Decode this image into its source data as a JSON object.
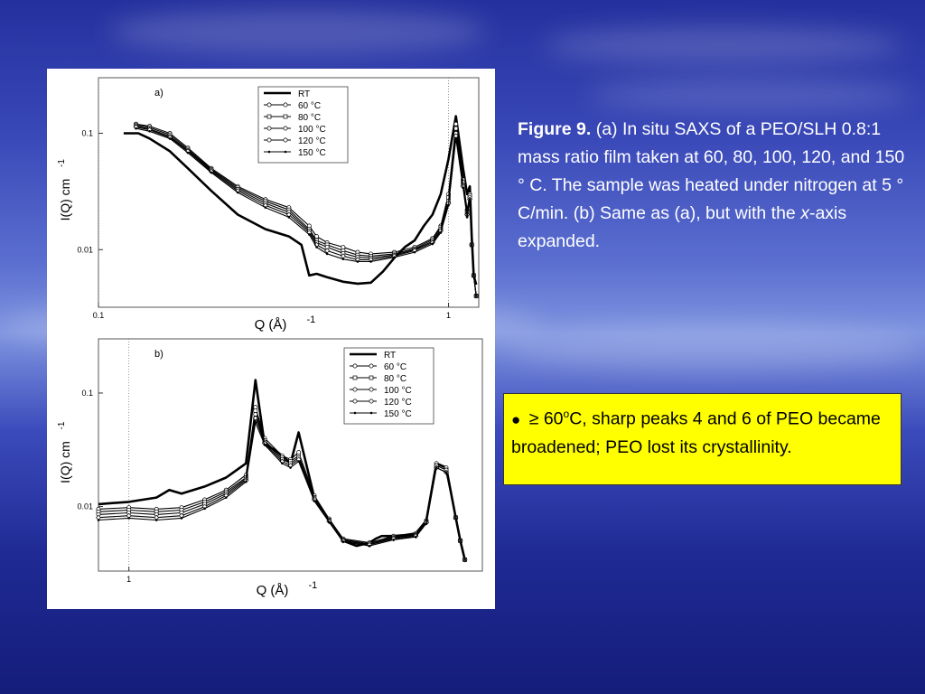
{
  "slide": {
    "caption": {
      "figure_label": "Figure 9.",
      "text_part1": " (a) In situ SAXS of a PEO/SLH 0.8:1 mass ratio film taken at 60, 80, 100, 120, and 150 ° C. The sample was heated under nitrogen at 5 ° C/min. (b) Same as (a), but with the ",
      "italic_x": "x",
      "text_part2": "-axis expanded."
    },
    "note": {
      "bullet": "●",
      "prefix": "≥ 60",
      "sup": "o",
      "text": "C, sharp peaks 4 and 6 of PEO became broadened; PEO lost its crystallinity."
    }
  },
  "chart_data": [
    {
      "type": "line",
      "panel_label": "a)",
      "xlabel": "Q (Å)",
      "xlabel_exp": "-1",
      "ylabel": "I(Q) cm",
      "ylabel_exp": "-1",
      "x_scale": "log",
      "y_scale": "log",
      "xlim": [
        0.1,
        1.22
      ],
      "ylim": [
        0.0032,
        0.3
      ],
      "x_ticks": [
        {
          "value": 0.1,
          "label": "0.1"
        },
        {
          "value": 1,
          "label": "1"
        }
      ],
      "y_ticks": [
        {
          "value": 0.1,
          "label": "0.1"
        },
        {
          "value": 0.01,
          "label": "0.01"
        }
      ],
      "vlines": [
        0.1,
        1
      ],
      "legend": [
        "RT",
        "60 °C",
        "80 °C",
        "100 °C",
        "120 °C",
        "150 °C"
      ],
      "legend_position": "top-right",
      "series": [
        {
          "name": "RT",
          "x": [
            0.118,
            0.13,
            0.14,
            0.16,
            0.18,
            0.21,
            0.25,
            0.3,
            0.35,
            0.38,
            0.4,
            0.42,
            0.45,
            0.5,
            0.55,
            0.6,
            0.65,
            0.7,
            0.75,
            0.8,
            0.85,
            0.9,
            0.95,
            1.0,
            1.05,
            1.1,
            1.13,
            1.15,
            1.165,
            1.18,
            1.2
          ],
          "y": [
            0.1,
            0.1,
            0.09,
            0.07,
            0.05,
            0.032,
            0.02,
            0.015,
            0.013,
            0.011,
            0.006,
            0.0062,
            0.0058,
            0.0053,
            0.0051,
            0.0052,
            0.0065,
            0.0085,
            0.0105,
            0.012,
            0.016,
            0.02,
            0.03,
            0.06,
            0.14,
            0.05,
            0.03,
            0.035,
            0.013,
            0.006,
            0.005
          ]
        },
        {
          "name": "60 °C",
          "x": [
            0.128,
            0.14,
            0.16,
            0.18,
            0.21,
            0.25,
            0.3,
            0.35,
            0.4,
            0.42,
            0.45,
            0.5,
            0.55,
            0.6,
            0.7,
            0.8,
            0.9,
            0.95,
            1.0,
            1.05,
            1.1,
            1.13,
            1.15,
            1.165,
            1.18,
            1.2
          ],
          "y": [
            0.12,
            0.115,
            0.1,
            0.075,
            0.05,
            0.035,
            0.027,
            0.023,
            0.016,
            0.013,
            0.0115,
            0.0105,
            0.0095,
            0.0092,
            0.0095,
            0.0105,
            0.0125,
            0.016,
            0.03,
            0.12,
            0.04,
            0.022,
            0.03,
            0.011,
            0.006,
            0.004
          ]
        },
        {
          "name": "80 °C",
          "x": [
            0.128,
            0.14,
            0.16,
            0.18,
            0.21,
            0.25,
            0.3,
            0.35,
            0.4,
            0.42,
            0.45,
            0.5,
            0.55,
            0.6,
            0.7,
            0.8,
            0.9,
            0.95,
            1.0,
            1.05,
            1.1,
            1.13,
            1.15,
            1.165,
            1.18,
            1.2
          ],
          "y": [
            0.118,
            0.112,
            0.097,
            0.073,
            0.049,
            0.034,
            0.026,
            0.022,
            0.015,
            0.012,
            0.011,
            0.0098,
            0.009,
            0.0088,
            0.0092,
            0.0102,
            0.0122,
            0.0155,
            0.028,
            0.11,
            0.038,
            0.021,
            0.029,
            0.011,
            0.006,
            0.004
          ]
        },
        {
          "name": "100 °C",
          "x": [
            0.128,
            0.14,
            0.16,
            0.18,
            0.21,
            0.25,
            0.3,
            0.35,
            0.4,
            0.42,
            0.45,
            0.5,
            0.55,
            0.6,
            0.7,
            0.8,
            0.9,
            0.95,
            1.0,
            1.05,
            1.1,
            1.13,
            1.15,
            1.165,
            1.18,
            1.2
          ],
          "y": [
            0.115,
            0.109,
            0.094,
            0.071,
            0.048,
            0.033,
            0.025,
            0.021,
            0.0145,
            0.0115,
            0.0105,
            0.0093,
            0.0086,
            0.0085,
            0.009,
            0.01,
            0.0118,
            0.015,
            0.026,
            0.1,
            0.036,
            0.02,
            0.028,
            0.011,
            0.006,
            0.004
          ]
        },
        {
          "name": "120 °C",
          "x": [
            0.128,
            0.14,
            0.16,
            0.18,
            0.21,
            0.25,
            0.3,
            0.35,
            0.4,
            0.42,
            0.45,
            0.5,
            0.55,
            0.6,
            0.7,
            0.8,
            0.9,
            0.95,
            1.0,
            1.05,
            1.1,
            1.13,
            1.15,
            1.165,
            1.18,
            1.2
          ],
          "y": [
            0.113,
            0.107,
            0.092,
            0.07,
            0.047,
            0.032,
            0.024,
            0.02,
            0.014,
            0.011,
            0.0098,
            0.0088,
            0.0082,
            0.0082,
            0.0088,
            0.0098,
            0.0115,
            0.0145,
            0.025,
            0.095,
            0.035,
            0.02,
            0.027,
            0.011,
            0.006,
            0.004
          ]
        },
        {
          "name": "150 °C",
          "x": [
            0.128,
            0.14,
            0.16,
            0.18,
            0.21,
            0.25,
            0.3,
            0.35,
            0.4,
            0.42,
            0.45,
            0.5,
            0.55,
            0.6,
            0.7,
            0.8,
            0.9,
            0.95,
            1.0,
            1.05,
            1.1,
            1.13,
            1.15,
            1.165,
            1.18,
            1.2
          ],
          "y": [
            0.11,
            0.104,
            0.09,
            0.068,
            0.046,
            0.031,
            0.023,
            0.019,
            0.0135,
            0.0105,
            0.0092,
            0.0083,
            0.0079,
            0.0079,
            0.0086,
            0.0095,
            0.0112,
            0.014,
            0.024,
            0.09,
            0.034,
            0.019,
            0.027,
            0.011,
            0.006,
            0.004
          ]
        }
      ]
    },
    {
      "type": "line",
      "panel_label": "b)",
      "xlabel": "Q (Å)",
      "xlabel_exp": "-1",
      "ylabel": "I(Q) cm",
      "ylabel_exp": "-1",
      "x_scale": "log",
      "y_scale": "log",
      "xlim": [
        0.9,
        3.4
      ],
      "ylim": [
        0.0027,
        0.3
      ],
      "x_ticks": [
        {
          "value": 1,
          "label": "1"
        }
      ],
      "y_ticks": [
        {
          "value": 0.1,
          "label": "0.1"
        },
        {
          "value": 0.01,
          "label": "0.01"
        }
      ],
      "vlines": [
        1
      ],
      "legend": [
        "RT",
        "60 °C",
        "80 °C",
        "100 °C",
        "120 °C",
        "150 °C"
      ],
      "legend_position": "top-right",
      "series": [
        {
          "name": "RT",
          "x": [
            0.9,
            1.0,
            1.1,
            1.15,
            1.2,
            1.3,
            1.4,
            1.5,
            1.55,
            1.6,
            1.65,
            1.7,
            1.75,
            1.8,
            1.9,
            2.0,
            2.1,
            2.2,
            2.3,
            2.35,
            2.4,
            2.5,
            2.6,
            2.7,
            2.8,
            2.9,
            3.0,
            3.1,
            3.15,
            3.2
          ],
          "y": [
            0.0105,
            0.011,
            0.012,
            0.014,
            0.013,
            0.015,
            0.018,
            0.024,
            0.13,
            0.035,
            0.032,
            0.028,
            0.024,
            0.045,
            0.012,
            0.0075,
            0.005,
            0.0045,
            0.0048,
            0.0052,
            0.0055,
            0.0055,
            0.0056,
            0.0058,
            0.0075,
            0.024,
            0.022,
            0.008,
            0.005,
            0.0034
          ]
        },
        {
          "name": "60 °C",
          "x": [
            0.9,
            1.0,
            1.1,
            1.2,
            1.3,
            1.4,
            1.5,
            1.55,
            1.6,
            1.7,
            1.75,
            1.8,
            1.9,
            2.0,
            2.1,
            2.3,
            2.5,
            2.7,
            2.8,
            2.9,
            3.0,
            3.1,
            3.15,
            3.2
          ],
          "y": [
            0.0095,
            0.0098,
            0.0095,
            0.0098,
            0.0115,
            0.014,
            0.019,
            0.075,
            0.04,
            0.028,
            0.026,
            0.03,
            0.0125,
            0.0078,
            0.0052,
            0.0048,
            0.0055,
            0.0058,
            0.0075,
            0.024,
            0.022,
            0.008,
            0.005,
            0.0034
          ]
        },
        {
          "name": "80 °C",
          "x": [
            0.9,
            1.0,
            1.1,
            1.2,
            1.3,
            1.4,
            1.5,
            1.55,
            1.6,
            1.7,
            1.75,
            1.8,
            1.9,
            2.0,
            2.1,
            2.3,
            2.5,
            2.7,
            2.8,
            2.9,
            3.0,
            3.1,
            3.15,
            3.2
          ],
          "y": [
            0.009,
            0.0093,
            0.009,
            0.0093,
            0.011,
            0.0135,
            0.018,
            0.07,
            0.038,
            0.027,
            0.025,
            0.028,
            0.012,
            0.0076,
            0.0051,
            0.0047,
            0.0054,
            0.0057,
            0.0074,
            0.023,
            0.021,
            0.008,
            0.005,
            0.0034
          ]
        },
        {
          "name": "100 °C",
          "x": [
            0.9,
            1.0,
            1.1,
            1.2,
            1.3,
            1.4,
            1.5,
            1.55,
            1.6,
            1.7,
            1.75,
            1.8,
            1.9,
            2.0,
            2.1,
            2.3,
            2.5,
            2.7,
            2.8,
            2.9,
            3.0,
            3.1,
            3.15,
            3.2
          ],
          "y": [
            0.0085,
            0.0088,
            0.0085,
            0.0088,
            0.0105,
            0.013,
            0.0175,
            0.065,
            0.037,
            0.026,
            0.024,
            0.027,
            0.0118,
            0.0075,
            0.005,
            0.0046,
            0.0053,
            0.0056,
            0.0073,
            0.023,
            0.021,
            0.008,
            0.005,
            0.0034
          ]
        },
        {
          "name": "120 °C",
          "x": [
            0.9,
            1.0,
            1.1,
            1.2,
            1.3,
            1.4,
            1.5,
            1.55,
            1.6,
            1.7,
            1.75,
            1.8,
            1.9,
            2.0,
            2.1,
            2.3,
            2.5,
            2.7,
            2.8,
            2.9,
            3.0,
            3.1,
            3.15,
            3.2
          ],
          "y": [
            0.008,
            0.0083,
            0.008,
            0.0083,
            0.01,
            0.0125,
            0.017,
            0.06,
            0.036,
            0.025,
            0.023,
            0.026,
            0.0115,
            0.0074,
            0.005,
            0.0046,
            0.0052,
            0.0055,
            0.0072,
            0.022,
            0.02,
            0.008,
            0.005,
            0.0034
          ]
        },
        {
          "name": "150 °C",
          "x": [
            0.9,
            1.0,
            1.1,
            1.2,
            1.3,
            1.4,
            1.5,
            1.55,
            1.6,
            1.7,
            1.75,
            1.8,
            1.9,
            2.0,
            2.1,
            2.3,
            2.5,
            2.7,
            2.8,
            2.9,
            3.0,
            3.1,
            3.15,
            3.2
          ],
          "y": [
            0.0076,
            0.0079,
            0.0076,
            0.0079,
            0.0096,
            0.012,
            0.0165,
            0.055,
            0.035,
            0.024,
            0.022,
            0.025,
            0.0112,
            0.0073,
            0.0049,
            0.0045,
            0.0051,
            0.0054,
            0.0071,
            0.022,
            0.02,
            0.008,
            0.005,
            0.0034
          ]
        }
      ]
    }
  ]
}
